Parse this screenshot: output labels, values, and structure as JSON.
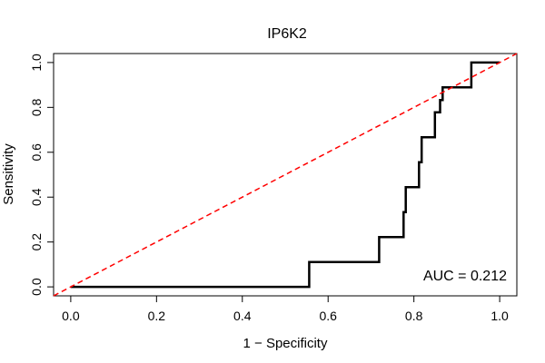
{
  "chart_data": {
    "type": "line",
    "title": "IP6K2",
    "xlabel": "1 − Specificity",
    "ylabel": "Sensitivity",
    "xlim": [
      -0.04,
      1.04
    ],
    "ylim": [
      -0.04,
      1.04
    ],
    "xticks": [
      0.0,
      0.2,
      0.4,
      0.6,
      0.8,
      1.0
    ],
    "yticks": [
      0.0,
      0.2,
      0.4,
      0.6,
      0.8,
      1.0
    ],
    "xtick_labels": [
      "0.0",
      "0.2",
      "0.4",
      "0.6",
      "0.8",
      "1.0"
    ],
    "ytick_labels": [
      "0.0",
      "0.2",
      "0.4",
      "0.6",
      "0.8",
      "1.0"
    ],
    "grid": false,
    "series": [
      {
        "color": "#000000",
        "style": "step",
        "x": [
          0.0,
          0.0,
          0.556,
          0.556,
          0.719,
          0.719,
          0.776,
          0.776,
          0.781,
          0.781,
          0.812,
          0.812,
          0.818,
          0.818,
          0.849,
          0.849,
          0.861,
          0.861,
          0.867,
          0.867,
          0.934,
          0.934,
          1.0
        ],
        "y": [
          0.0,
          0.0,
          0.0,
          0.111,
          0.111,
          0.222,
          0.222,
          0.333,
          0.333,
          0.444,
          0.444,
          0.556,
          0.556,
          0.667,
          0.667,
          0.778,
          0.778,
          0.833,
          0.833,
          0.889,
          0.889,
          1.0,
          1.0
        ]
      },
      {
        "color": "#ff0000",
        "style": "dashed",
        "x": [
          -0.04,
          1.04
        ],
        "y": [
          -0.04,
          1.04
        ]
      }
    ],
    "annotations": [
      {
        "text": "AUC = 0.212"
      }
    ]
  }
}
